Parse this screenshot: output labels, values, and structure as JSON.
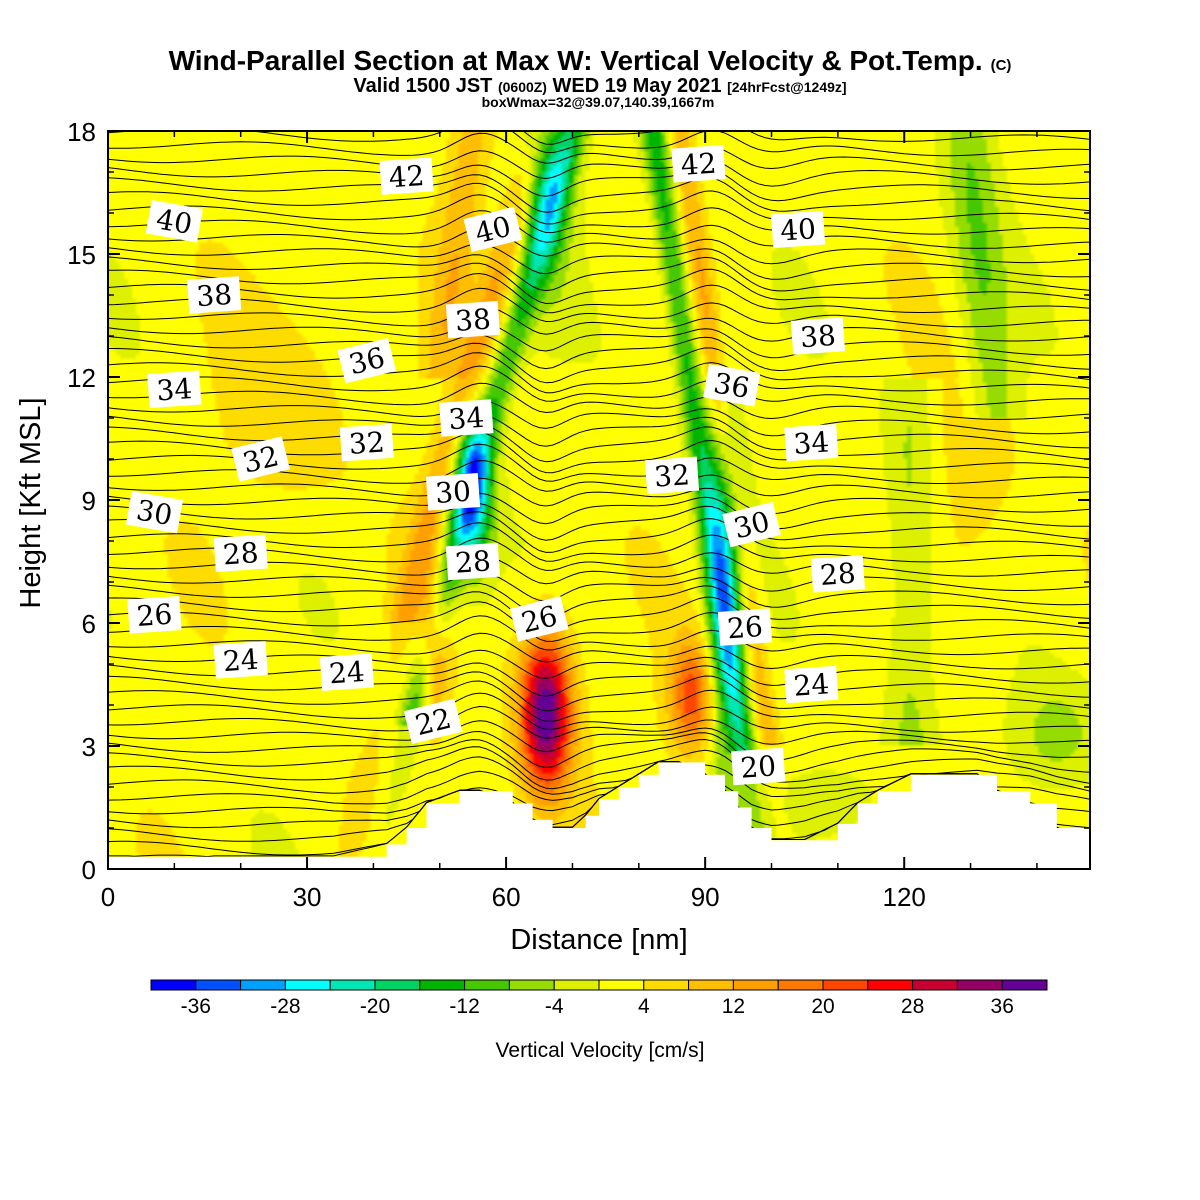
{
  "title": {
    "main": "Wind-Parallel Section at Max W: Vertical Velocity & Pot.Temp.",
    "main_mark": "(C)",
    "valid_prefix": "Valid 1500 JST",
    "valid_zulu": "(0600Z)",
    "valid_date": "WED 19 May 2021",
    "forecast": "[24hrFcst@1249z]",
    "box": "boxWmax=32@39.07,140.39,1667m"
  },
  "chart_data": {
    "type": "heatmap",
    "xlabel": "Distance [nm]",
    "ylabel": "Height [Kft MSL]",
    "xlim": [
      0,
      148
    ],
    "ylim": [
      0,
      18
    ],
    "x_ticks": [
      0,
      30,
      60,
      90,
      120
    ],
    "y_ticks": [
      0,
      3,
      6,
      9,
      12,
      15,
      18
    ],
    "colorbar": {
      "title": "Vertical Velocity [cm/s]",
      "tick_labels": [
        "-36",
        "-28",
        "-20",
        "-12",
        "-4",
        "4",
        "12",
        "20",
        "28",
        "36"
      ],
      "tick_values": [
        -36,
        -28,
        -20,
        -12,
        -4,
        4,
        12,
        20,
        28,
        36
      ],
      "boundaries": [
        -40,
        -36,
        -32,
        -28,
        -24,
        -20,
        -16,
        -12,
        -8,
        -4,
        0,
        4,
        8,
        12,
        16,
        20,
        24,
        28,
        32,
        36,
        40
      ],
      "colors": [
        "#0000ff",
        "#0050ff",
        "#00a0ff",
        "#00ffff",
        "#00e6b4",
        "#00d264",
        "#00b400",
        "#46c800",
        "#96dc00",
        "#dcf000",
        "#ffff00",
        "#ffdc00",
        "#ffbe00",
        "#ffa000",
        "#ff7800",
        "#ff4600",
        "#ff0000",
        "#c80032",
        "#960064",
        "#640096"
      ]
    },
    "theta_contours": {
      "interval_K": 1,
      "labels": [
        {
          "text": "42",
          "x": 45,
          "y": 16.9
        },
        {
          "text": "42",
          "x": 89,
          "y": 17.2
        },
        {
          "text": "40",
          "x": 10,
          "y": 15.8
        },
        {
          "text": "40",
          "x": 58,
          "y": 15.6
        },
        {
          "text": "40",
          "x": 104,
          "y": 15.6
        },
        {
          "text": "38",
          "x": 16,
          "y": 14.0
        },
        {
          "text": "38",
          "x": 55,
          "y": 13.4
        },
        {
          "text": "38",
          "x": 107,
          "y": 13.0
        },
        {
          "text": "36",
          "x": 39,
          "y": 12.4
        },
        {
          "text": "36",
          "x": 94,
          "y": 11.8
        },
        {
          "text": "34",
          "x": 10,
          "y": 11.7
        },
        {
          "text": "34",
          "x": 54,
          "y": 11.0
        },
        {
          "text": "34",
          "x": 106,
          "y": 10.4
        },
        {
          "text": "32",
          "x": 23,
          "y": 10.0
        },
        {
          "text": "32",
          "x": 39,
          "y": 10.4
        },
        {
          "text": "32",
          "x": 85,
          "y": 9.6
        },
        {
          "text": "30",
          "x": 7,
          "y": 8.7
        },
        {
          "text": "30",
          "x": 52,
          "y": 9.2
        },
        {
          "text": "30",
          "x": 97,
          "y": 8.4
        },
        {
          "text": "28",
          "x": 20,
          "y": 7.7
        },
        {
          "text": "28",
          "x": 55,
          "y": 7.5
        },
        {
          "text": "28",
          "x": 110,
          "y": 7.2
        },
        {
          "text": "26",
          "x": 7,
          "y": 6.2
        },
        {
          "text": "26",
          "x": 65,
          "y": 6.1
        },
        {
          "text": "26",
          "x": 96,
          "y": 5.9
        },
        {
          "text": "24",
          "x": 20,
          "y": 5.1
        },
        {
          "text": "24",
          "x": 36,
          "y": 4.8
        },
        {
          "text": "24",
          "x": 106,
          "y": 4.5
        },
        {
          "text": "22",
          "x": 49,
          "y": 3.6
        },
        {
          "text": "20",
          "x": 98,
          "y": 2.5
        }
      ]
    },
    "terrain_kft": {
      "x": [
        0,
        34,
        42,
        45,
        48,
        53,
        56,
        61,
        64,
        67,
        70,
        72,
        74,
        77,
        80,
        83,
        86,
        90,
        93,
        95,
        97,
        100,
        105,
        110,
        113,
        116,
        121,
        126,
        131,
        134,
        139,
        143,
        148
      ],
      "y": [
        0.3,
        0.3,
        0.6,
        1.0,
        1.6,
        1.9,
        1.9,
        1.6,
        1.2,
        1.0,
        1.0,
        1.3,
        1.7,
        2.0,
        2.3,
        2.6,
        2.6,
        2.3,
        1.9,
        1.5,
        1.0,
        0.7,
        0.7,
        1.1,
        1.6,
        1.9,
        2.3,
        2.3,
        2.3,
        1.9,
        1.6,
        1.0,
        0.6
      ]
    },
    "features": [
      {
        "kind": "updraft",
        "peak_cm_s": 38,
        "x": 66,
        "y": 3.8,
        "sx": 2.8,
        "sy": 1.4
      },
      {
        "kind": "updraft",
        "peak_cm_s": 20,
        "x": 88,
        "y": 4.2,
        "sx": 2.5,
        "sy": 1.0
      },
      {
        "kind": "updraft",
        "peak_cm_s": 16,
        "x": 49,
        "y": 5.3,
        "sx": 1.5,
        "sy": 1.2
      },
      {
        "kind": "downdraft",
        "peak_cm_s": -30,
        "x": 55,
        "y": 9.2,
        "sx": 2.0,
        "sy": 1.3
      },
      {
        "kind": "downdraft",
        "peak_cm_s": -22,
        "x": 93,
        "y": 7.0,
        "sx": 2.0,
        "sy": 3.0
      },
      {
        "kind": "downdraft",
        "peak_cm_s": -20,
        "x": 66,
        "y": 17.0,
        "sx": 2.5,
        "sy": 1.8
      }
    ]
  }
}
